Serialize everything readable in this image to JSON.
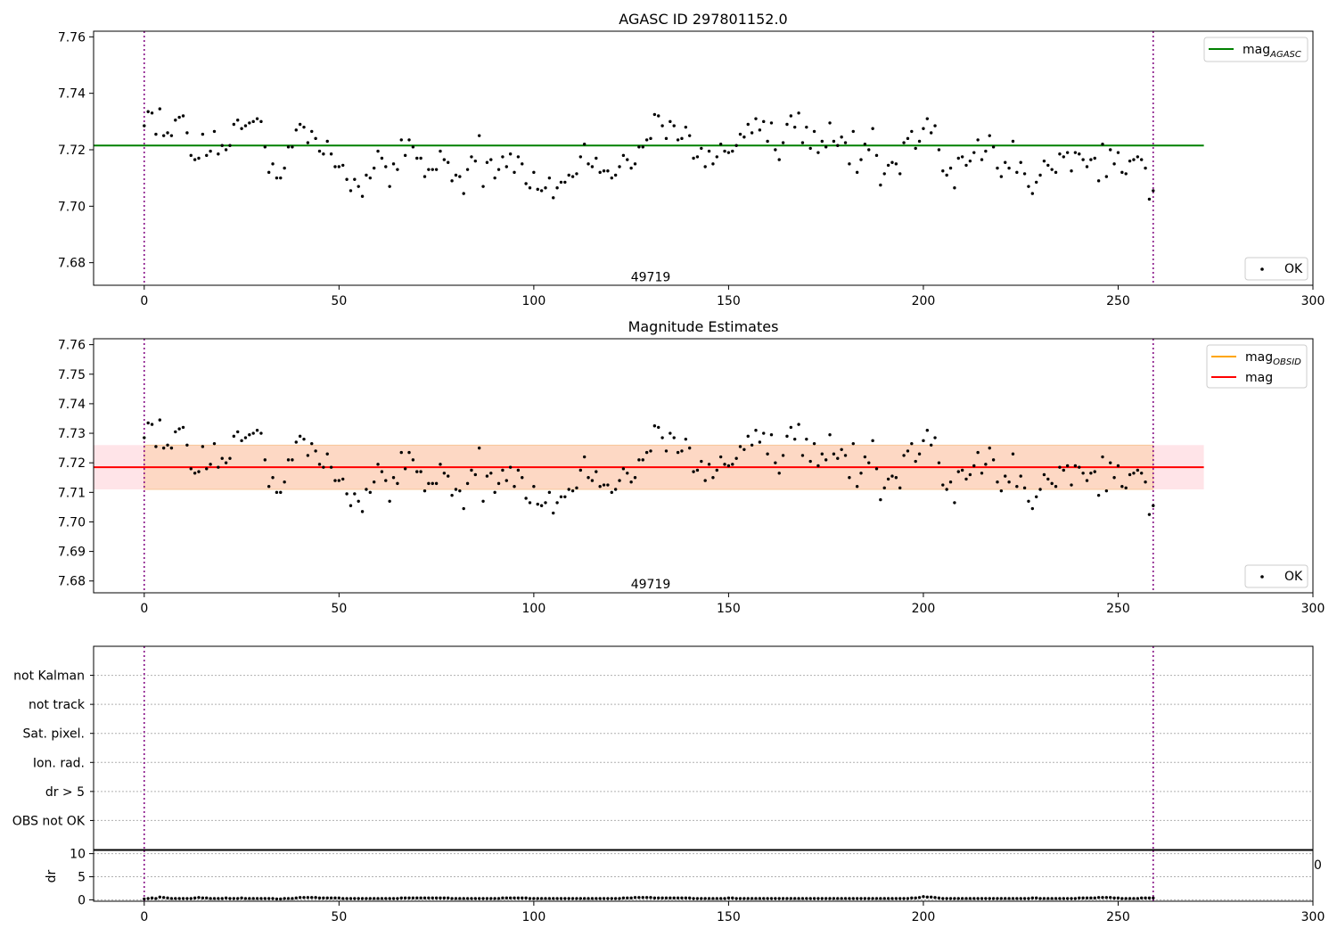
{
  "chart_data": [
    {
      "type": "scatter",
      "title": "AGASC ID 297801152.0",
      "xlim": [
        -13,
        300
      ],
      "ylim": [
        7.672,
        7.762
      ],
      "xticks": [
        "0",
        "50",
        "100",
        "150",
        "200",
        "250",
        "300"
      ],
      "yticks": [
        "7.68",
        "7.70",
        "7.72",
        "7.74",
        "7.76"
      ],
      "ytick_values": [
        7.68,
        7.7,
        7.72,
        7.74,
        7.76
      ],
      "vlines": [
        0,
        259
      ],
      "vline_color": "#800080",
      "hline": {
        "y": 7.7215,
        "x": [
          -13,
          272
        ],
        "color": "#008000"
      },
      "annotation": {
        "text": "49719",
        "x": 130,
        "y": 7.675
      },
      "legend_top": {
        "label": "mag",
        "subscript": "AGASC",
        "color": "#008000"
      },
      "legend_bottom": {
        "label": "OK"
      },
      "grid": false
    },
    {
      "type": "scatter",
      "title": "Magnitude Estimates",
      "xlim": [
        -13,
        300
      ],
      "ylim": [
        7.676,
        7.762
      ],
      "xticks": [
        "0",
        "50",
        "100",
        "150",
        "200",
        "250",
        "300"
      ],
      "yticks": [
        "7.68",
        "7.69",
        "7.70",
        "7.71",
        "7.72",
        "7.73",
        "7.74",
        "7.75",
        "7.76"
      ],
      "ytick_values": [
        7.68,
        7.69,
        7.7,
        7.71,
        7.72,
        7.73,
        7.74,
        7.75,
        7.76
      ],
      "vlines": [
        0,
        259
      ],
      "hline": {
        "y": 7.7185,
        "x": [
          -13,
          272
        ],
        "color": "#ff0000"
      },
      "band_outer": {
        "y": [
          7.711,
          7.726
        ],
        "x": [
          -13,
          272
        ],
        "color": "#ffe4e8"
      },
      "band_inner": {
        "y": [
          7.711,
          7.726
        ],
        "x": [
          0,
          259
        ],
        "color": "#fdd8c4"
      },
      "annotation": {
        "text": "49719",
        "x": 130,
        "y": 7.679
      },
      "legend_top": [
        {
          "label": "mag",
          "subscript": "OBSID",
          "color": "#ffa500"
        },
        {
          "label": "mag",
          "subscript": "",
          "color": "#ff0000"
        }
      ],
      "legend_bottom": {
        "label": "OK"
      },
      "grid": false
    },
    {
      "type": "table",
      "flags": [
        "not Kalman",
        "not track",
        "Sat. pixel.",
        "Ion. rad.",
        "dr > 5",
        "OBS not OK"
      ],
      "xlim": [
        -13,
        300
      ],
      "vlines": [
        0,
        259
      ],
      "grid": true
    },
    {
      "type": "scatter",
      "ylabel": "dr",
      "xlim": [
        -13,
        300
      ],
      "ylim": [
        -0.3,
        10.7
      ],
      "xticks": [
        "0",
        "50",
        "100",
        "150",
        "200",
        "250",
        "300"
      ],
      "yticks": [
        "0",
        "5",
        "10"
      ],
      "ytick_values": [
        0,
        5,
        10
      ],
      "clipped_tick": "0",
      "vlines": [
        0,
        259
      ],
      "grid": true
    }
  ],
  "series": {
    "x": [
      0,
      1,
      2,
      3,
      4,
      5,
      6,
      7,
      8,
      9,
      10,
      11,
      12,
      13,
      14,
      15,
      16,
      17,
      18,
      19,
      20,
      21,
      22,
      23,
      24,
      25,
      26,
      27,
      28,
      29,
      30,
      31,
      32,
      33,
      34,
      35,
      36,
      37,
      38,
      39,
      40,
      41,
      42,
      43,
      44,
      45,
      46,
      47,
      48,
      49,
      50,
      51,
      52,
      53,
      54,
      55,
      56,
      57,
      58,
      59,
      60,
      61,
      62,
      63,
      64,
      65,
      66,
      67,
      68,
      69,
      70,
      71,
      72,
      73,
      74,
      75,
      76,
      77,
      78,
      79,
      80,
      81,
      82,
      83,
      84,
      85,
      86,
      87,
      88,
      89,
      90,
      91,
      92,
      93,
      94,
      95,
      96,
      97,
      98,
      99,
      100,
      101,
      102,
      103,
      104,
      105,
      106,
      107,
      108,
      109,
      110,
      111,
      112,
      113,
      114,
      115,
      116,
      117,
      118,
      119,
      120,
      121,
      122,
      123,
      124,
      125,
      126,
      127,
      128,
      129,
      130,
      131,
      132,
      133,
      134,
      135,
      136,
      137,
      138,
      139,
      140,
      141,
      142,
      143,
      144,
      145,
      146,
      147,
      148,
      149,
      150,
      151,
      152,
      153,
      154,
      155,
      156,
      157,
      158,
      159,
      160,
      161,
      162,
      163,
      164,
      165,
      166,
      167,
      168,
      169,
      170,
      171,
      172,
      173,
      174,
      175,
      176,
      177,
      178,
      179,
      180,
      181,
      182,
      183,
      184,
      185,
      186,
      187,
      188,
      189,
      190,
      191,
      192,
      193,
      194,
      195,
      196,
      197,
      198,
      199,
      200,
      201,
      202,
      203,
      204,
      205,
      206,
      207,
      208,
      209,
      210,
      211,
      212,
      213,
      214,
      215,
      216,
      217,
      218,
      219,
      220,
      221,
      222,
      223,
      224,
      225,
      226,
      227,
      228,
      229,
      230,
      231,
      232,
      233,
      234,
      235,
      236,
      237,
      238,
      239,
      240,
      241,
      242,
      243,
      244,
      245,
      246,
      247,
      248,
      249,
      250,
      251,
      252,
      253,
      254,
      255,
      256,
      257,
      258,
      259
    ],
    "mag": [
      7.7285,
      7.7335,
      7.733,
      7.7255,
      7.7345,
      7.725,
      7.726,
      7.725,
      7.7305,
      7.7315,
      7.732,
      7.726,
      7.718,
      7.7165,
      7.717,
      7.7255,
      7.718,
      7.7195,
      7.7265,
      7.7185,
      7.7215,
      7.72,
      7.7215,
      7.729,
      7.7305,
      7.7275,
      7.7285,
      7.7295,
      7.73,
      7.731,
      7.73,
      7.721,
      7.712,
      7.715,
      7.71,
      7.71,
      7.7135,
      7.721,
      7.721,
      7.727,
      7.729,
      7.728,
      7.7225,
      7.7265,
      7.724,
      7.7195,
      7.7185,
      7.723,
      7.7185,
      7.714,
      7.714,
      7.7145,
      7.7095,
      7.7055,
      7.7095,
      7.707,
      7.7035,
      7.711,
      7.71,
      7.7135,
      7.7195,
      7.717,
      7.714,
      7.707,
      7.715,
      7.713,
      7.7235,
      7.718,
      7.7235,
      7.721,
      7.717,
      7.717,
      7.7105,
      7.713,
      7.713,
      7.713,
      7.7195,
      7.7165,
      7.7155,
      7.709,
      7.711,
      7.7105,
      7.7045,
      7.713,
      7.7175,
      7.716,
      7.725,
      7.707,
      7.7155,
      7.7165,
      7.71,
      7.713,
      7.7175,
      7.714,
      7.7185,
      7.712,
      7.7175,
      7.715,
      7.708,
      7.7065,
      7.712,
      7.706,
      7.7055,
      7.7065,
      7.71,
      7.703,
      7.7065,
      7.7085,
      7.7085,
      7.711,
      7.7105,
      7.7115,
      7.7175,
      7.722,
      7.715,
      7.714,
      7.717,
      7.712,
      7.7125,
      7.7125,
      7.71,
      7.711,
      7.714,
      7.718,
      7.7165,
      7.7135,
      7.715,
      7.721,
      7.721,
      7.7235,
      7.724,
      7.7325,
      7.732,
      7.7285,
      7.724,
      7.73,
      7.7285,
      7.7235,
      7.724,
      7.728,
      7.725,
      7.717,
      7.7175,
      7.7205,
      7.714,
      7.7195,
      7.715,
      7.7175,
      7.722,
      7.7195,
      7.719,
      7.7195,
      7.7215,
      7.7255,
      7.7245,
      7.729,
      7.726,
      7.731,
      7.727,
      7.73,
      7.723,
      7.7295,
      7.72,
      7.7165,
      7.7225,
      7.729,
      7.732,
      7.728,
      7.733,
      7.7225,
      7.728,
      7.7205,
      7.7265,
      7.719,
      7.723,
      7.721,
      7.7295,
      7.723,
      7.7215,
      7.7245,
      7.7225,
      7.715,
      7.7265,
      7.712,
      7.7165,
      7.722,
      7.72,
      7.7275,
      7.718,
      7.7075,
      7.7115,
      7.7145,
      7.7155,
      7.715,
      7.7115,
      7.7225,
      7.724,
      7.7265,
      7.7205,
      7.723,
      7.7275,
      7.731,
      7.726,
      7.7285,
      7.72,
      7.7125,
      7.711,
      7.7135,
      7.7065,
      7.717,
      7.7175,
      7.7145,
      7.716,
      7.719,
      7.7235,
      7.7165,
      7.7195,
      7.725,
      7.721,
      7.7135,
      7.7105,
      7.7155,
      7.7135,
      7.723,
      7.712,
      7.7155,
      7.7115,
      7.707,
      7.7045,
      7.7085,
      7.711,
      7.716,
      7.7145,
      7.713,
      7.712,
      7.7185,
      7.7175,
      7.719,
      7.7125,
      7.719,
      7.7185,
      7.7165,
      7.714,
      7.7165,
      7.717,
      7.709,
      7.722,
      7.7105,
      7.72,
      7.715,
      7.719,
      7.712,
      7.7115,
      7.716,
      7.7165,
      7.7175,
      7.7165,
      7.7135,
      7.7025,
      7.7055
    ],
    "dr": [
      0.2,
      0.3,
      0.4,
      0.3,
      0.6,
      0.5,
      0.4,
      0.3,
      0.3,
      0.3,
      0.3,
      0.3,
      0.3,
      0.4,
      0.5,
      0.4,
      0.4,
      0.3,
      0.3,
      0.3,
      0.3,
      0.4,
      0.3,
      0.3,
      0.3,
      0.4,
      0.3,
      0.3,
      0.3,
      0.3,
      0.3,
      0.3,
      0.3,
      0.3,
      0.2,
      0.2,
      0.3,
      0.3,
      0.3,
      0.4,
      0.5,
      0.5,
      0.5,
      0.5,
      0.5,
      0.4,
      0.4,
      0.4,
      0.4,
      0.4,
      0.4,
      0.3,
      0.3,
      0.3,
      0.3,
      0.3,
      0.3,
      0.3,
      0.3,
      0.3,
      0.3,
      0.3,
      0.3,
      0.3,
      0.3,
      0.3,
      0.4,
      0.4,
      0.4,
      0.4,
      0.4,
      0.4,
      0.4,
      0.4,
      0.4,
      0.4,
      0.4,
      0.4,
      0.4,
      0.3,
      0.3,
      0.3,
      0.3,
      0.3,
      0.3,
      0.3,
      0.3,
      0.3,
      0.3,
      0.3,
      0.3,
      0.3,
      0.4,
      0.4,
      0.4,
      0.4,
      0.4,
      0.4,
      0.4,
      0.3,
      0.3,
      0.3,
      0.3,
      0.3,
      0.3,
      0.3,
      0.3,
      0.3,
      0.3,
      0.3,
      0.3,
      0.3,
      0.3,
      0.3,
      0.3,
      0.3,
      0.3,
      0.3,
      0.3,
      0.3,
      0.3,
      0.3,
      0.3,
      0.4,
      0.4,
      0.4,
      0.5,
      0.5,
      0.5,
      0.5,
      0.5,
      0.4,
      0.4,
      0.4,
      0.4,
      0.4,
      0.4,
      0.4,
      0.4,
      0.4,
      0.4,
      0.3,
      0.3,
      0.3,
      0.3,
      0.3,
      0.3,
      0.3,
      0.3,
      0.3,
      0.4,
      0.4,
      0.3,
      0.3,
      0.3,
      0.3,
      0.3,
      0.3,
      0.3,
      0.3,
      0.3,
      0.3,
      0.3,
      0.3,
      0.3,
      0.3,
      0.3,
      0.3,
      0.3,
      0.3,
      0.3,
      0.3,
      0.3,
      0.3,
      0.3,
      0.3,
      0.3,
      0.3,
      0.3,
      0.3,
      0.3,
      0.3,
      0.3,
      0.3,
      0.3,
      0.3,
      0.3,
      0.3,
      0.3,
      0.3,
      0.3,
      0.3,
      0.3,
      0.3,
      0.3,
      0.3,
      0.3,
      0.4,
      0.4,
      0.5,
      0.7,
      0.6,
      0.6,
      0.5,
      0.4,
      0.3,
      0.3,
      0.3,
      0.3,
      0.3,
      0.3,
      0.3,
      0.3,
      0.3,
      0.3,
      0.3,
      0.3,
      0.3,
      0.3,
      0.3,
      0.3,
      0.3,
      0.3,
      0.3,
      0.3,
      0.3,
      0.3,
      0.3,
      0.4,
      0.4,
      0.3,
      0.3,
      0.3,
      0.3,
      0.3,
      0.3,
      0.3,
      0.3,
      0.3,
      0.3,
      0.4,
      0.4,
      0.4,
      0.4,
      0.4,
      0.5,
      0.5,
      0.5,
      0.5,
      0.4,
      0.4,
      0.3,
      0.3,
      0.3,
      0.3,
      0.3,
      0.4,
      0.4,
      0.4,
      0.4,
      0.5,
      0.1
    ]
  }
}
